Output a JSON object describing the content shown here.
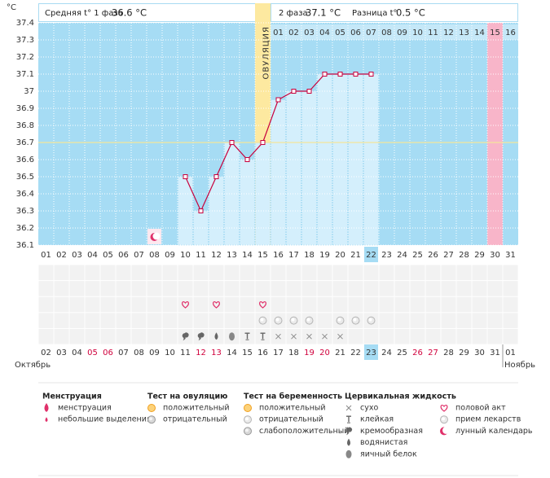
{
  "header": {
    "unit": "°C",
    "phase1_label": "Средняя t° 1 фаза",
    "phase1_value": "36.6 °C",
    "phase2_label": "2 фаза",
    "phase2_value": "37.1 °C",
    "diff_label": "Разница t°",
    "diff_value": "0.5 °C"
  },
  "chart_data": {
    "type": "line",
    "categories": [
      "01",
      "02",
      "03",
      "04",
      "05",
      "06",
      "07",
      "08",
      "09",
      "10",
      "11",
      "12",
      "13",
      "14",
      "15",
      "16",
      "17",
      "18",
      "19",
      "20",
      "21",
      "22",
      "23",
      "24",
      "25",
      "26",
      "27",
      "28",
      "29",
      "30",
      "31"
    ],
    "values": [
      null,
      null,
      null,
      null,
      null,
      null,
      null,
      null,
      null,
      36.5,
      36.3,
      36.5,
      36.7,
      36.6,
      36.7,
      36.95,
      37,
      37,
      37.1,
      37.1,
      37.1,
      37.1,
      null,
      null,
      null,
      null,
      null,
      null,
      null,
      null,
      null
    ],
    "color": "#c8003c",
    "ylim": [
      36.1,
      37.4
    ],
    "yticks": [
      36.1,
      36.2,
      36.3,
      36.4,
      36.5,
      36.6,
      36.7,
      36.8,
      36.9,
      37,
      37.1,
      37.2,
      37.3,
      37.4
    ],
    "grid": true,
    "coverline": 36.7,
    "ovulation_index": 14,
    "ovulation_label": "ОВУЛЯЦИЯ",
    "phase2_days": [
      "01",
      "02",
      "03",
      "04",
      "05",
      "06",
      "07",
      "08",
      "09",
      "10",
      "11",
      "12",
      "13",
      "14",
      "15",
      "16"
    ],
    "phase2_highlight": 14,
    "today_index": 21,
    "lunar_index": 7
  },
  "observations": {
    "sex": [
      9,
      11,
      14
    ],
    "pregnancy_negative": [
      14,
      15,
      16,
      17,
      19,
      20,
      21
    ],
    "cervical_fluid": [
      null,
      null,
      null,
      null,
      null,
      null,
      null,
      null,
      null,
      "cream",
      "cream",
      "watery",
      "egg",
      "sticky",
      "sticky",
      "dry",
      "dry",
      "dry",
      "dry",
      "dry",
      null,
      null,
      null,
      null,
      null,
      null,
      null,
      null,
      null,
      null,
      null
    ]
  },
  "calendar": {
    "dates": [
      "02",
      "03",
      "04",
      "05",
      "06",
      "07",
      "08",
      "09",
      "10",
      "11",
      "12",
      "13",
      "14",
      "15",
      "16",
      "17",
      "18",
      "19",
      "20",
      "21",
      "22",
      "23",
      "24",
      "25",
      "26",
      "27",
      "28",
      "29",
      "30",
      "31",
      "01"
    ],
    "weekend": [
      3,
      4,
      10,
      11,
      17,
      18,
      24,
      25
    ],
    "month_left": "Октябрь",
    "month_right": "Ноябрь",
    "month_break": 30
  },
  "legend": [
    {
      "heading": "Менструация",
      "items": [
        {
          "label": "менструация",
          "icon": "mens"
        },
        {
          "label": "небольшие выделения",
          "icon": "spot"
        }
      ]
    },
    {
      "heading": "Тест на овуляцию",
      "items": [
        {
          "label": "положительный",
          "icon": "orange"
        },
        {
          "label": "отрицательный",
          "icon": "gray"
        }
      ]
    },
    {
      "heading": "Тест на беременность",
      "items": [
        {
          "label": "положительный",
          "icon": "orange"
        },
        {
          "label": "отрицательный",
          "icon": "light"
        },
        {
          "label": "слабоположительный",
          "icon": "gray"
        }
      ]
    },
    {
      "heading": "Цервикальная жидкость",
      "items": [
        {
          "label": "сухо",
          "icon": "dry"
        },
        {
          "label": "клейкая",
          "icon": "sticky"
        },
        {
          "label": "кремообразная",
          "icon": "cream"
        },
        {
          "label": "водянистая",
          "icon": "watery"
        },
        {
          "label": "яичный белок",
          "icon": "egg"
        }
      ]
    },
    {
      "items": [
        {
          "label": "половой акт",
          "icon": "heart"
        },
        {
          "label": "прием лекарств",
          "icon": "light"
        },
        {
          "label": "лунный календарь",
          "icon": "moon"
        }
      ]
    }
  ]
}
